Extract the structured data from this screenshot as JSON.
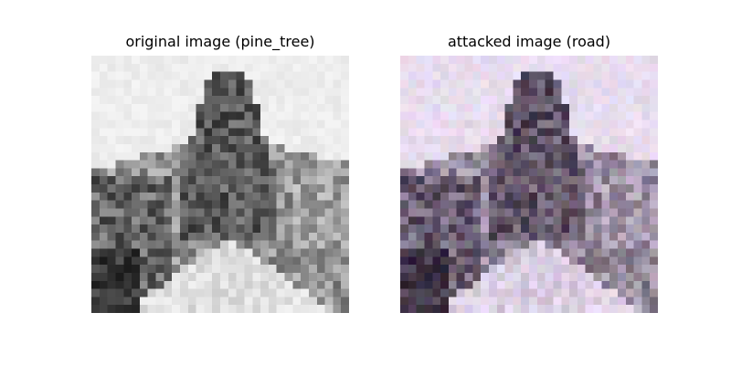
{
  "panels": [
    {
      "title": "original image (pine_tree)",
      "image_description": "32x32 grayscale pixelated photo of a rocky hill with a dark pine tree and a light road in the foreground"
    },
    {
      "title": "attacked image (road)",
      "image_description": "Same 32x32 image with faint colored adversarial noise (pinkish/greenish tints)"
    }
  ]
}
